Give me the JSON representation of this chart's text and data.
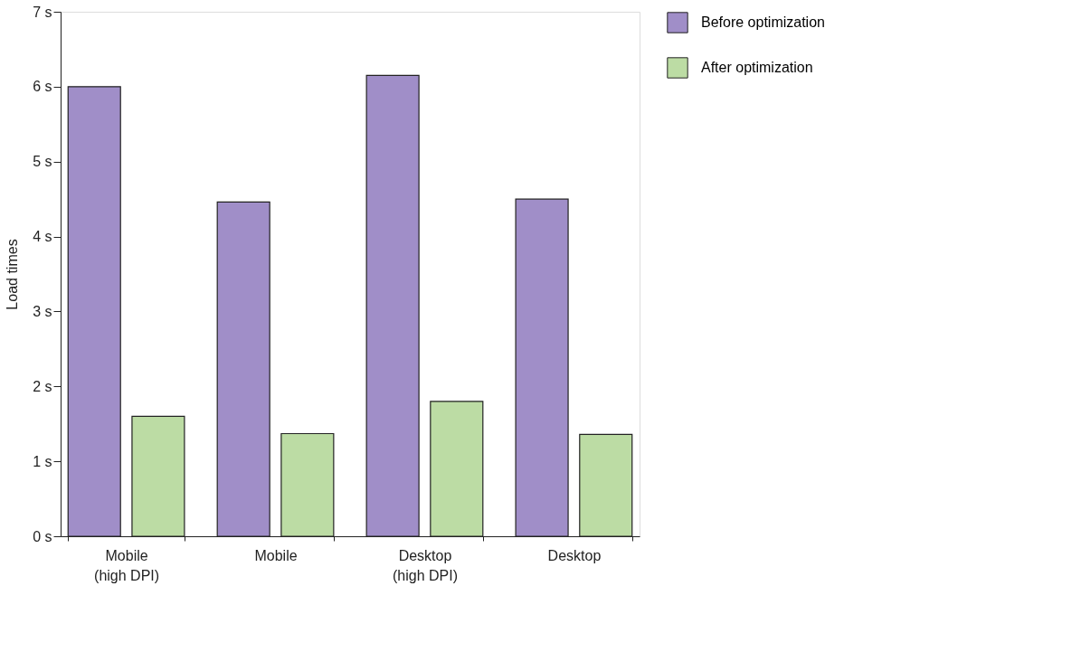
{
  "chart_data": {
    "type": "bar",
    "ylabel": "Load times",
    "categories": [
      "Mobile\n(high DPI)",
      "Mobile",
      "Desktop\n(high DPI)",
      "Desktop"
    ],
    "series": [
      {
        "name": "Before optimization",
        "color": "#a08ec8",
        "values": [
          6.0,
          4.46,
          6.15,
          4.5
        ]
      },
      {
        "name": "After optimization",
        "color": "#bcdca4",
        "values": [
          1.6,
          1.37,
          1.8,
          1.36
        ]
      }
    ],
    "ylim": [
      0,
      7
    ],
    "yticks": [
      {
        "value": 0,
        "label": "0 s"
      },
      {
        "value": 1,
        "label": "1 s"
      },
      {
        "value": 2,
        "label": "2 s"
      },
      {
        "value": 3,
        "label": "3 s"
      },
      {
        "value": 4,
        "label": "4 s"
      },
      {
        "value": 5,
        "label": "5 s"
      },
      {
        "value": 6,
        "label": "6 s"
      },
      {
        "value": 7,
        "label": "7 s"
      }
    ],
    "grid": false,
    "legend": "top right"
  }
}
